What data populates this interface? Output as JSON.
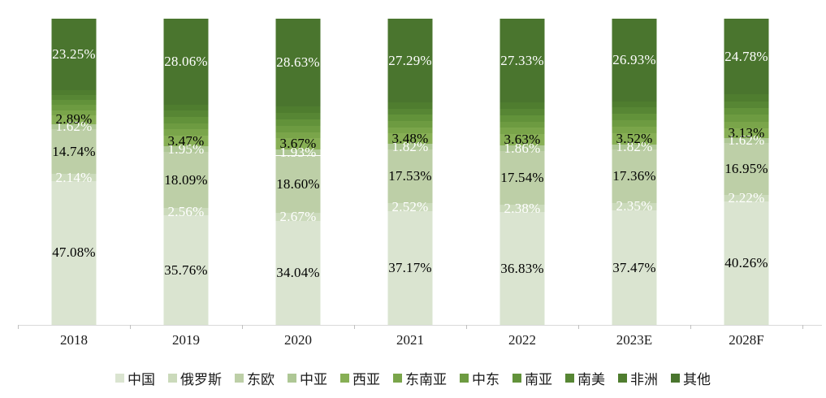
{
  "background_color": "#ffffff",
  "axis": {
    "line_color": "#d9d9d9",
    "tick_color": "#bfbfbf",
    "categories": [
      "2018",
      "2019",
      "2020",
      "2021",
      "2022",
      "2023E",
      "2028F"
    ]
  },
  "chart_data": {
    "type": "bar",
    "subtype": "stacked-100-percent-column",
    "title": "",
    "xlabel": "",
    "ylabel": "",
    "ylim": [
      0,
      100
    ],
    "grid": false,
    "legend_position": "bottom",
    "label_format": "percent-2dp",
    "note": "Segments 东南亚/中东/南亚/南美/非洲 carry no data labels in the image; their values are estimated so each column totals 100%.",
    "categories": [
      "2018",
      "2019",
      "2020",
      "2021",
      "2022",
      "2023E",
      "2028F"
    ],
    "series": [
      {
        "id": "china",
        "name": "中国",
        "color": "#dae4d0",
        "labeled": true,
        "label_color": "#000000",
        "values": [
          47.08,
          35.76,
          34.04,
          37.17,
          36.83,
          37.47,
          40.26
        ]
      },
      {
        "id": "russia",
        "name": "俄罗斯",
        "color": "#cbdabb",
        "labeled": true,
        "label_color": "#ffffff",
        "values": [
          2.14,
          2.56,
          2.67,
          2.52,
          2.38,
          2.35,
          2.22
        ]
      },
      {
        "id": "eastern-europe",
        "name": "东欧",
        "color": "#bdcfa7",
        "labeled": true,
        "label_color": "#000000",
        "values": [
          14.74,
          18.09,
          18.6,
          17.53,
          17.54,
          17.36,
          16.95
        ]
      },
      {
        "id": "central-asia",
        "name": "中亚",
        "color": "#aec795",
        "labeled": true,
        "label_color": "#ffffff",
        "values": [
          1.62,
          1.95,
          1.93,
          1.82,
          1.86,
          1.82,
          1.62
        ]
      },
      {
        "id": "west-asia",
        "name": "西亚",
        "color": "#87af55",
        "labeled": true,
        "label_color": "#000000",
        "values": [
          2.89,
          3.47,
          3.67,
          3.48,
          3.63,
          3.52,
          3.13
        ]
      },
      {
        "id": "southeast-asia",
        "name": "东南亚",
        "color": "#7aa54a",
        "labeled": false,
        "estimated": true,
        "values": [
          1.66,
          2.02,
          2.09,
          2.04,
          2.09,
          2.11,
          2.21
        ]
      },
      {
        "id": "middle-east",
        "name": "中东",
        "color": "#6d9b41",
        "labeled": false,
        "estimated": true,
        "values": [
          1.66,
          2.02,
          2.09,
          2.04,
          2.09,
          2.11,
          2.21
        ]
      },
      {
        "id": "south-asia",
        "name": "南亚",
        "color": "#62923a",
        "labeled": false,
        "estimated": true,
        "values": [
          1.65,
          2.02,
          2.09,
          2.04,
          2.08,
          2.11,
          2.21
        ]
      },
      {
        "id": "south-america",
        "name": "南美",
        "color": "#578634",
        "labeled": false,
        "estimated": true,
        "values": [
          1.65,
          2.02,
          2.09,
          2.04,
          2.08,
          2.11,
          2.21
        ]
      },
      {
        "id": "africa",
        "name": "非洲",
        "color": "#4f7d2f",
        "labeled": false,
        "estimated": true,
        "values": [
          1.66,
          2.03,
          2.1,
          2.03,
          2.09,
          2.11,
          2.2
        ]
      },
      {
        "id": "other",
        "name": "其他",
        "color": "#4a752e",
        "labeled": true,
        "label_color": "#ffffff",
        "values": [
          23.25,
          28.06,
          28.63,
          27.29,
          27.33,
          26.93,
          24.78
        ]
      }
    ]
  }
}
